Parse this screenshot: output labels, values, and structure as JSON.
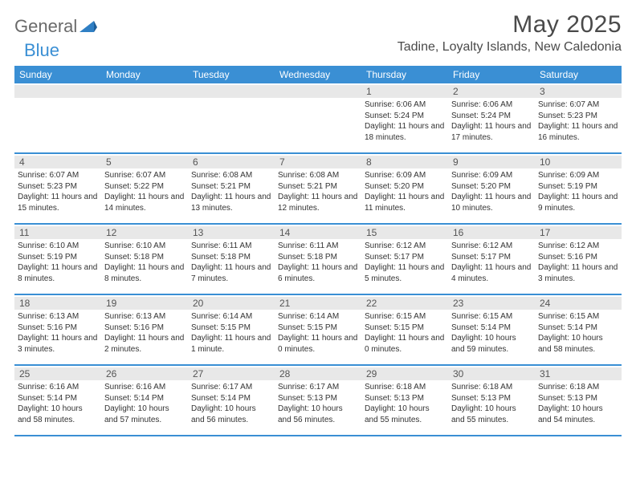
{
  "logo": {
    "part1": "General",
    "part2": "Blue"
  },
  "title": "May 2025",
  "location": "Tadine, Loyalty Islands, New Caledonia",
  "colors": {
    "header_bg": "#3a8fd4",
    "band_bg": "#e8e8e8",
    "rule": "#3a8fd4",
    "text": "#333333"
  },
  "daysOfWeek": [
    "Sunday",
    "Monday",
    "Tuesday",
    "Wednesday",
    "Thursday",
    "Friday",
    "Saturday"
  ],
  "weeks": [
    [
      null,
      null,
      null,
      null,
      {
        "n": "1",
        "sr": "6:06 AM",
        "ss": "5:24 PM",
        "dl": "11 hours and 18 minutes."
      },
      {
        "n": "2",
        "sr": "6:06 AM",
        "ss": "5:24 PM",
        "dl": "11 hours and 17 minutes."
      },
      {
        "n": "3",
        "sr": "6:07 AM",
        "ss": "5:23 PM",
        "dl": "11 hours and 16 minutes."
      }
    ],
    [
      {
        "n": "4",
        "sr": "6:07 AM",
        "ss": "5:23 PM",
        "dl": "11 hours and 15 minutes."
      },
      {
        "n": "5",
        "sr": "6:07 AM",
        "ss": "5:22 PM",
        "dl": "11 hours and 14 minutes."
      },
      {
        "n": "6",
        "sr": "6:08 AM",
        "ss": "5:21 PM",
        "dl": "11 hours and 13 minutes."
      },
      {
        "n": "7",
        "sr": "6:08 AM",
        "ss": "5:21 PM",
        "dl": "11 hours and 12 minutes."
      },
      {
        "n": "8",
        "sr": "6:09 AM",
        "ss": "5:20 PM",
        "dl": "11 hours and 11 minutes."
      },
      {
        "n": "9",
        "sr": "6:09 AM",
        "ss": "5:20 PM",
        "dl": "11 hours and 10 minutes."
      },
      {
        "n": "10",
        "sr": "6:09 AM",
        "ss": "5:19 PM",
        "dl": "11 hours and 9 minutes."
      }
    ],
    [
      {
        "n": "11",
        "sr": "6:10 AM",
        "ss": "5:19 PM",
        "dl": "11 hours and 8 minutes."
      },
      {
        "n": "12",
        "sr": "6:10 AM",
        "ss": "5:18 PM",
        "dl": "11 hours and 8 minutes."
      },
      {
        "n": "13",
        "sr": "6:11 AM",
        "ss": "5:18 PM",
        "dl": "11 hours and 7 minutes."
      },
      {
        "n": "14",
        "sr": "6:11 AM",
        "ss": "5:18 PM",
        "dl": "11 hours and 6 minutes."
      },
      {
        "n": "15",
        "sr": "6:12 AM",
        "ss": "5:17 PM",
        "dl": "11 hours and 5 minutes."
      },
      {
        "n": "16",
        "sr": "6:12 AM",
        "ss": "5:17 PM",
        "dl": "11 hours and 4 minutes."
      },
      {
        "n": "17",
        "sr": "6:12 AM",
        "ss": "5:16 PM",
        "dl": "11 hours and 3 minutes."
      }
    ],
    [
      {
        "n": "18",
        "sr": "6:13 AM",
        "ss": "5:16 PM",
        "dl": "11 hours and 3 minutes."
      },
      {
        "n": "19",
        "sr": "6:13 AM",
        "ss": "5:16 PM",
        "dl": "11 hours and 2 minutes."
      },
      {
        "n": "20",
        "sr": "6:14 AM",
        "ss": "5:15 PM",
        "dl": "11 hours and 1 minute."
      },
      {
        "n": "21",
        "sr": "6:14 AM",
        "ss": "5:15 PM",
        "dl": "11 hours and 0 minutes."
      },
      {
        "n": "22",
        "sr": "6:15 AM",
        "ss": "5:15 PM",
        "dl": "11 hours and 0 minutes."
      },
      {
        "n": "23",
        "sr": "6:15 AM",
        "ss": "5:14 PM",
        "dl": "10 hours and 59 minutes."
      },
      {
        "n": "24",
        "sr": "6:15 AM",
        "ss": "5:14 PM",
        "dl": "10 hours and 58 minutes."
      }
    ],
    [
      {
        "n": "25",
        "sr": "6:16 AM",
        "ss": "5:14 PM",
        "dl": "10 hours and 58 minutes."
      },
      {
        "n": "26",
        "sr": "6:16 AM",
        "ss": "5:14 PM",
        "dl": "10 hours and 57 minutes."
      },
      {
        "n": "27",
        "sr": "6:17 AM",
        "ss": "5:14 PM",
        "dl": "10 hours and 56 minutes."
      },
      {
        "n": "28",
        "sr": "6:17 AM",
        "ss": "5:13 PM",
        "dl": "10 hours and 56 minutes."
      },
      {
        "n": "29",
        "sr": "6:18 AM",
        "ss": "5:13 PM",
        "dl": "10 hours and 55 minutes."
      },
      {
        "n": "30",
        "sr": "6:18 AM",
        "ss": "5:13 PM",
        "dl": "10 hours and 55 minutes."
      },
      {
        "n": "31",
        "sr": "6:18 AM",
        "ss": "5:13 PM",
        "dl": "10 hours and 54 minutes."
      }
    ]
  ],
  "labels": {
    "sunrise": "Sunrise:",
    "sunset": "Sunset:",
    "daylight": "Daylight:"
  }
}
